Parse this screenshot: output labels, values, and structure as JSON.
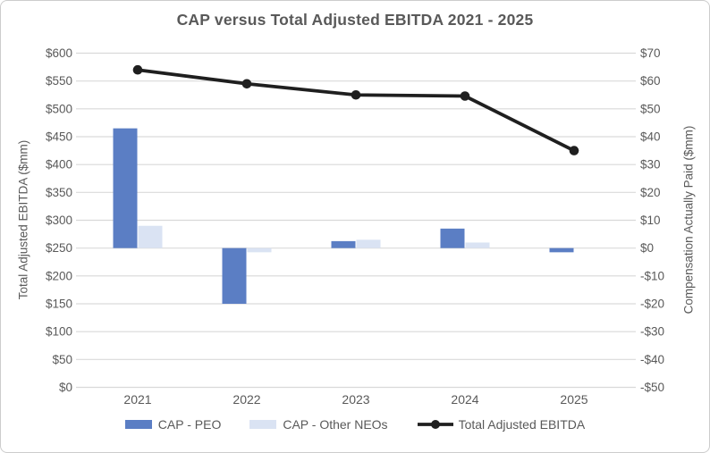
{
  "chart_data": {
    "type": "combo-bar-line",
    "title": "CAP versus Total Adjusted EBITDA 2021 - 2025",
    "categories": [
      "2021",
      "2022",
      "2023",
      "2024",
      "2025"
    ],
    "series": [
      {
        "name": "CAP - PEO",
        "type": "bar",
        "axis": "right",
        "color": "#5B7EC4",
        "values": [
          43,
          -20,
          2.5,
          7,
          -1.5
        ]
      },
      {
        "name": "CAP - Other NEOs",
        "type": "bar",
        "axis": "right",
        "color": "#DAE3F3",
        "values": [
          8,
          -1.5,
          3,
          2,
          0
        ]
      },
      {
        "name": "Total Adjusted EBITDA",
        "type": "line",
        "axis": "left",
        "color": "#1F1F1F",
        "values": [
          570,
          545,
          525,
          523,
          425
        ]
      }
    ],
    "left_axis": {
      "title": "Total Adjusted EBITDA ($mm)",
      "range": [
        0,
        600
      ],
      "tick_step": 50,
      "tick_labels": [
        "$600",
        "$550",
        "$500",
        "$450",
        "$400",
        "$350",
        "$300",
        "$250",
        "$200",
        "$150",
        "$100",
        "$50",
        "$0"
      ]
    },
    "right_axis": {
      "title": "Compensation Actually Paid ($mm)",
      "range": [
        -50,
        70
      ],
      "tick_step": 10,
      "tick_labels": [
        "$70",
        "$60",
        "$50",
        "$40",
        "$30",
        "$20",
        "$10",
        "$0",
        "-$10",
        "-$20",
        "-$30",
        "-$40",
        "-$50"
      ]
    },
    "grid": true,
    "legend_position": "bottom"
  },
  "style": {
    "gridline_color": "#D9D9D9",
    "text_color": "#595959",
    "border_color": "#CCCCCC",
    "background": "#FFFFFF"
  }
}
